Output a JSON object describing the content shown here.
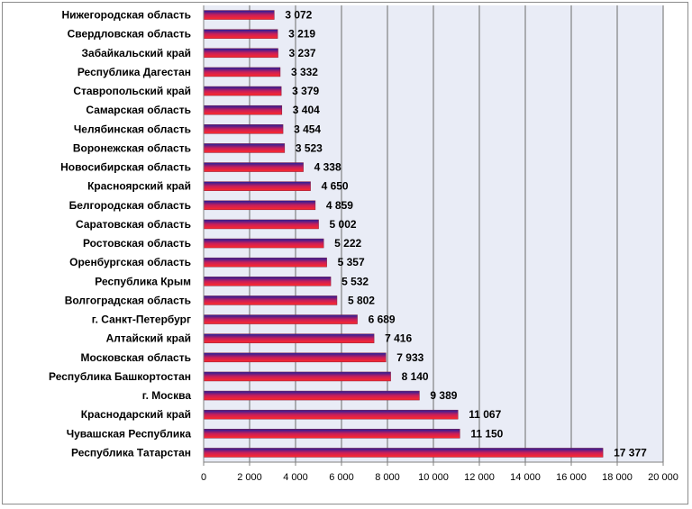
{
  "chart_data": {
    "type": "bar",
    "orientation": "horizontal",
    "categories": [
      "Нижегородская область",
      "Свердловская область",
      "Забайкальский край",
      "Республика Дагестан",
      "Ставропольский край",
      "Самарская область",
      "Челябинская область",
      "Воронежская область",
      "Новосибирская область",
      "Красноярский край",
      "Белгородская область",
      "Саратовская область",
      "Ростовская область",
      "Оренбургская область",
      "Республика Крым",
      "Волгоградская область",
      "г. Санкт-Петербург",
      "Алтайский край",
      "Московская область",
      "Республика Башкортостан",
      "г. Москва",
      "Краснодарский край",
      "Чувашская Республика",
      "Республика Татарстан"
    ],
    "values": [
      3072,
      3219,
      3237,
      3332,
      3379,
      3404,
      3454,
      3523,
      4338,
      4650,
      4859,
      5002,
      5222,
      5357,
      5532,
      5802,
      6689,
      7416,
      7933,
      8140,
      9389,
      11067,
      11150,
      17377
    ],
    "value_labels": [
      "3 072",
      "3 219",
      "3 237",
      "3 332",
      "3 379",
      "3 404",
      "3 454",
      "3 523",
      "4 338",
      "4 650",
      "4 859",
      "5 002",
      "5 222",
      "5 357",
      "5 532",
      "5 802",
      "6 689",
      "7 416",
      "7 933",
      "8 140",
      "9 389",
      "11 067",
      "11 150",
      "17 377"
    ],
    "xlim": [
      0,
      20000
    ],
    "x_ticks": [
      0,
      2000,
      4000,
      6000,
      8000,
      10000,
      12000,
      14000,
      16000,
      18000,
      20000
    ],
    "x_tick_labels": [
      "0",
      "2 000",
      "4 000",
      "6 000",
      "8 000",
      "10 000",
      "12 000",
      "14 000",
      "16 000",
      "18 000",
      "20 000"
    ],
    "grid": "vertical",
    "legend": "none",
    "title": "",
    "xlabel": "",
    "ylabel": "",
    "colors": {
      "bar_top": "#1f1f9f",
      "bar_mid": "#c81e5a",
      "bar_bottom": "#ff2a2a",
      "plot_background": "#e9ecf6",
      "gridline": "#6b6b6b",
      "axis": "#808080"
    }
  }
}
